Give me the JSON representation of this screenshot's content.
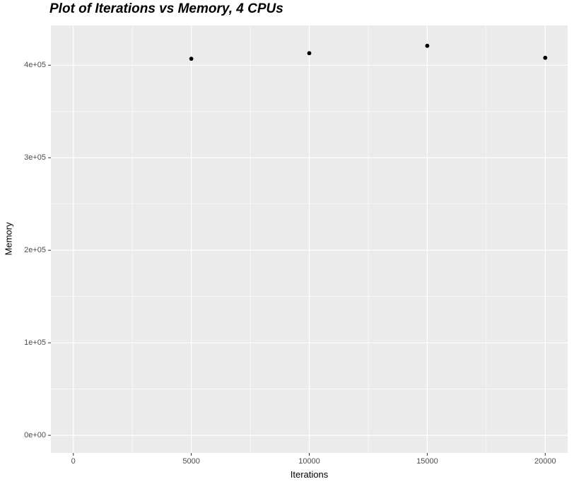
{
  "title": "Plot of Iterations vs Memory, 4 CPUs",
  "chart_data": {
    "type": "scatter",
    "title": "Plot of Iterations vs Memory, 4 CPUs",
    "xlabel": "Iterations",
    "ylabel": "Memory",
    "x": [
      5000,
      10000,
      15000,
      20000
    ],
    "y": [
      407000,
      413000,
      421000,
      408000
    ],
    "xlim": [
      -950,
      20950
    ],
    "ylim": [
      -19000,
      443000
    ],
    "x_ticks": [
      {
        "value": 0,
        "label": "0"
      },
      {
        "value": 5000,
        "label": "5000"
      },
      {
        "value": 10000,
        "label": "10000"
      },
      {
        "value": 15000,
        "label": "15000"
      },
      {
        "value": 20000,
        "label": "20000"
      }
    ],
    "y_ticks": [
      {
        "value": 0,
        "label": "0e+00"
      },
      {
        "value": 100000,
        "label": "1e+05"
      },
      {
        "value": 200000,
        "label": "2e+05"
      },
      {
        "value": 300000,
        "label": "3e+05"
      },
      {
        "value": 400000,
        "label": "4e+05"
      }
    ],
    "x_minor_ticks": [
      2500,
      7500,
      12500,
      17500
    ],
    "y_minor_ticks": [
      50000,
      150000,
      250000,
      350000
    ],
    "grid": "major+minor",
    "legend": "none",
    "colors": {
      "figure_background": "#FFFFFF",
      "panel_background": "#EBEBEB",
      "grid": "#FFFFFF",
      "point": "#000000",
      "tick_mark": "#333333",
      "tick_label": "#4D4D4D",
      "axis_title": "#000000",
      "title": "#000000"
    }
  }
}
